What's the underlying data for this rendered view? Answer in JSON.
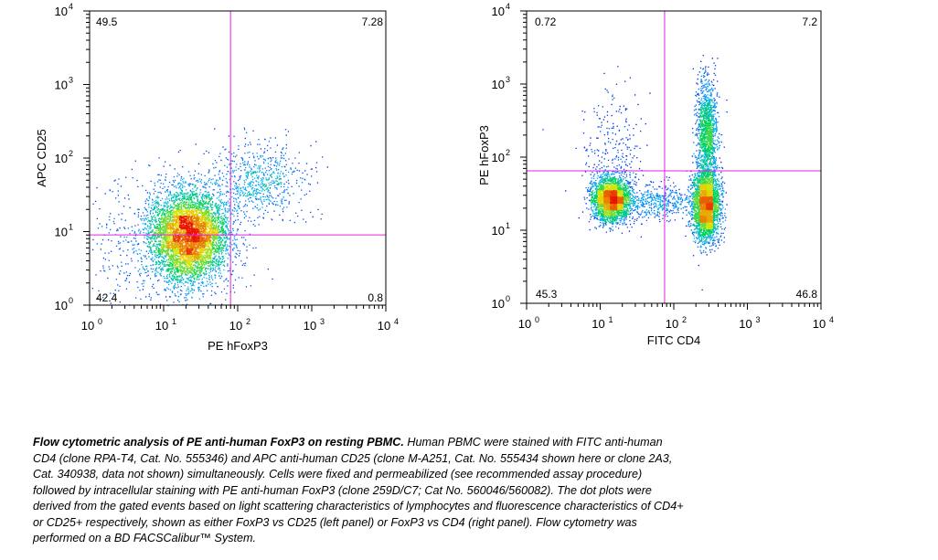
{
  "chart_data": [
    {
      "type": "scatter",
      "subtype": "flow-cytometry-density-dot-plot",
      "xlabel": "PE hFoxP3",
      "ylabel": "APC CD25",
      "scale": "log",
      "xlim": [
        1,
        10000
      ],
      "ylim": [
        1,
        10000
      ],
      "x_tick_labels": [
        "10",
        "10",
        "10",
        "10",
        "10"
      ],
      "x_tick_exponents": [
        "0",
        "1",
        "2",
        "3",
        "4"
      ],
      "y_tick_labels": [
        "10",
        "10",
        "10",
        "10",
        "10"
      ],
      "y_tick_exponents": [
        "0",
        "1",
        "2",
        "3",
        "4"
      ],
      "gate": {
        "x": 80,
        "y": 9,
        "color": "#e020e0"
      },
      "quadrant_percentages": {
        "upper_left": "49.5",
        "upper_right": "7.28",
        "lower_left": "42.4",
        "lower_right": "0.8"
      },
      "populations": [
        {
          "x_center": 22,
          "y_center": 9,
          "x_spread_decades": 0.26,
          "y_spread_decades": 0.3,
          "count": 5200
        },
        {
          "x_center": 200,
          "y_center": 50,
          "x_spread_decades": 0.3,
          "y_spread_decades": 0.25,
          "count": 650
        },
        {
          "x_center": 10,
          "y_center": 6,
          "x_spread_decades": 0.5,
          "y_spread_decades": 0.5,
          "count": 700
        }
      ]
    },
    {
      "type": "scatter",
      "subtype": "flow-cytometry-density-dot-plot",
      "xlabel": "FITC CD4",
      "ylabel": "PE hFoxP3",
      "scale": "log",
      "xlim": [
        1,
        10000
      ],
      "ylim": [
        1,
        10000
      ],
      "x_tick_labels": [
        "10",
        "10",
        "10",
        "10",
        "10"
      ],
      "x_tick_exponents": [
        "0",
        "1",
        "2",
        "3",
        "4"
      ],
      "y_tick_labels": [
        "10",
        "10",
        "10",
        "10",
        "10"
      ],
      "y_tick_exponents": [
        "0",
        "1",
        "2",
        "3",
        "4"
      ],
      "gate": {
        "x": 75,
        "y": 65,
        "color": "#e020e0"
      },
      "quadrant_percentages": {
        "upper_left": "0.72",
        "upper_right": "7.2",
        "lower_left": "45.3",
        "lower_right": "46.8"
      },
      "populations": [
        {
          "x_center": 14,
          "y_center": 27,
          "x_spread_decades": 0.13,
          "y_spread_decades": 0.15,
          "count": 2800
        },
        {
          "x_center": 270,
          "y_center": 22,
          "x_spread_decades": 0.09,
          "y_spread_decades": 0.24,
          "count": 3000
        },
        {
          "x_center": 280,
          "y_center": 220,
          "x_spread_decades": 0.07,
          "y_spread_decades": 0.35,
          "count": 1300
        },
        {
          "x_center": 60,
          "y_center": 25,
          "x_spread_decades": 0.25,
          "y_spread_decades": 0.12,
          "count": 450
        },
        {
          "x_center": 15,
          "y_center": 120,
          "x_spread_decades": 0.2,
          "y_spread_decades": 0.4,
          "count": 250
        }
      ]
    }
  ],
  "caption": {
    "lead": "Flow cytometric analysis of PE anti-human FoxP3 on resting PBMC",
    "lines": [
      "Human PBMC were stained with FITC anti-human",
      "CD4 (clone RPA-T4, Cat. No. 555346) and APC anti-human CD25 (clone M-A251, Cat. No. 555434 shown here or clone 2A3,",
      "Cat. 340938, data not shown) simultaneously.  Cells were fixed and permeabilized (see recommended assay procedure)",
      "followed by intracellular staining with PE anti-human FoxP3 (clone 259D/C7; Cat No. 560046/560082). The dot plots were",
      "derived from the gated events based on light scattering characteristics of lymphocytes and fluorescence characteristics of CD4+",
      "or CD25+ respectively, shown as either FoxP3 vs CD25 (left panel) or FoxP3 vs CD4 (right panel). Flow cytometry was",
      "performed on a BD FACSCalibur™ System."
    ]
  }
}
